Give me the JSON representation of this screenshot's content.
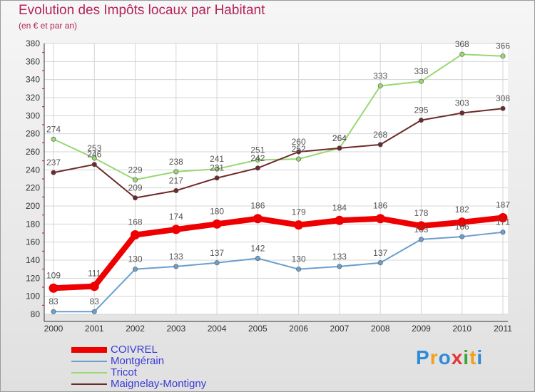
{
  "header": {
    "title": "Evolution des Impôts locaux par Habitant",
    "subtitle": "(en € et par an)"
  },
  "logo": {
    "text": "Proxiti",
    "colors": [
      "#2e8bd6",
      "#f0a020",
      "#2e8bd6",
      "#e3353b",
      "#3aa43a",
      "#f0a020",
      "#2e8bd6"
    ]
  },
  "chart_data": {
    "type": "line",
    "categories": [
      "2000",
      "2001",
      "2002",
      "2003",
      "2004",
      "2005",
      "2006",
      "2007",
      "2008",
      "2009",
      "2010",
      "2011"
    ],
    "ylim": [
      80,
      380
    ],
    "yticks": [
      "80",
      "100",
      "120",
      "140",
      "160",
      "180",
      "200",
      "220",
      "240",
      "260",
      "280",
      "300",
      "320",
      "340",
      "360",
      "380"
    ],
    "grid": true,
    "legend_position": "bottom-left",
    "series": [
      {
        "name": "Tricot",
        "color": "#98d873",
        "width": 2,
        "values": [
          274,
          253,
          229,
          238,
          241,
          251,
          252,
          264,
          333,
          338,
          368,
          366
        ],
        "labels": [
          "274",
          "253",
          "229",
          "238",
          "241",
          "251",
          "252",
          "264",
          "333",
          "338",
          "368",
          "366"
        ]
      },
      {
        "name": "Maignelay-Montigny",
        "color": "#6e2a2a",
        "width": 2,
        "values": [
          237,
          246,
          209,
          217,
          231,
          242,
          260,
          264,
          268,
          295,
          303,
          308
        ],
        "labels": [
          "237",
          "246",
          "209",
          "217",
          "231",
          "242",
          "260",
          "264",
          "268",
          "295",
          "303",
          "308"
        ]
      },
      {
        "name": "Montgérain",
        "color": "#6b9fcd",
        "width": 2,
        "values": [
          83,
          83,
          130,
          133,
          137,
          142,
          130,
          133,
          137,
          163,
          166,
          171
        ],
        "labels": [
          "83",
          "83",
          "130",
          "133",
          "137",
          "142",
          "130",
          "133",
          "137",
          "163",
          "166",
          "171"
        ]
      },
      {
        "name": "COIVREL",
        "color": "#ee0000",
        "width": 8,
        "values": [
          109,
          111,
          168,
          174,
          180,
          186,
          179,
          184,
          186,
          178,
          182,
          187
        ],
        "labels": [
          "109",
          "111",
          "168",
          "174",
          "180",
          "186",
          "179",
          "184",
          "186",
          "178",
          "182",
          "187"
        ]
      }
    ],
    "legend": [
      {
        "name": "COIVREL",
        "color": "#ee0000",
        "thickness": 8
      },
      {
        "name": "Montgérain",
        "color": "#6b9fcd",
        "thickness": 2
      },
      {
        "name": "Tricot",
        "color": "#98d873",
        "thickness": 2
      },
      {
        "name": "Maignelay-Montigny",
        "color": "#6e2a2a",
        "thickness": 2
      }
    ],
    "legend_text_color": "#3a3ad8"
  }
}
